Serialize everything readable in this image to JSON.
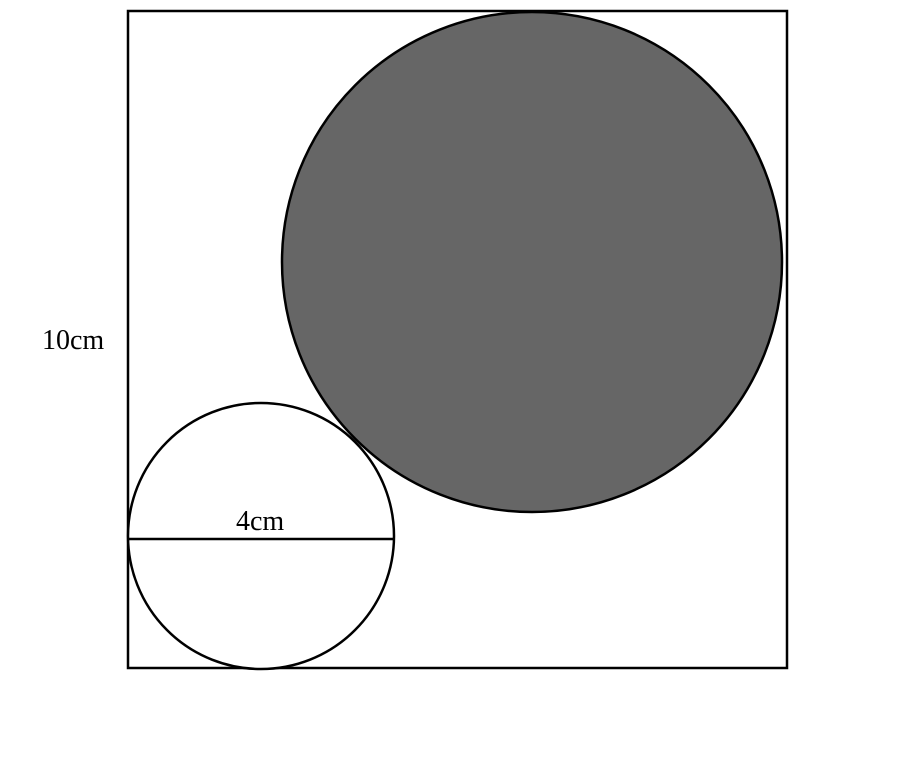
{
  "figure": {
    "side_label": "10cm",
    "diameter_label": "4cm",
    "colors": {
      "stroke": "#000000",
      "shaded_fill": "#666666",
      "background": "#ffffff"
    }
  }
}
